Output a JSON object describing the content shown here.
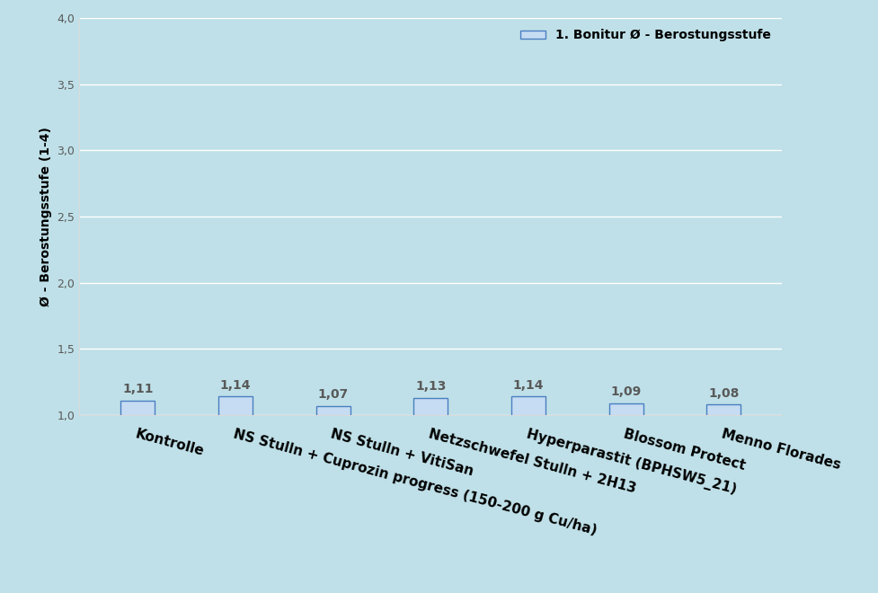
{
  "chart_data": {
    "type": "bar",
    "y_label": "Ø - Berostungsstufe (1-4)",
    "categories": [
      "Kontrolle",
      "NS Stulln + Cuprozin progress (150-200 g Cu/ha)",
      "NS Stulln + VitiSan",
      "Netzschwefel Stulln + 2H13",
      "Hyperparastit (BPHSW5_21)",
      "Blossom Protect",
      "Menno Florades"
    ],
    "series": [
      {
        "name": "1. Bonitur Ø - Berostungsstufe",
        "color": "#c6dcf2",
        "values": [
          1.11,
          1.14,
          1.07,
          1.13,
          1.14,
          1.09,
          1.08
        ],
        "value_labels": [
          "1,11",
          "1,14",
          "1,07",
          "1,13",
          "1,14",
          "1,09",
          "1,08"
        ]
      }
    ],
    "ylim": [
      1.0,
      4.0
    ],
    "yticks": [
      {
        "value": 1.0,
        "label": "1,0"
      },
      {
        "value": 1.5,
        "label": "1,5"
      },
      {
        "value": 2.0,
        "label": "2,0"
      },
      {
        "value": 2.5,
        "label": "2,5"
      },
      {
        "value": 3.0,
        "label": "3,0"
      },
      {
        "value": 3.5,
        "label": "3,5"
      },
      {
        "value": 4.0,
        "label": "4,0"
      }
    ],
    "grid": true,
    "legend": "upper right",
    "data_labels": true
  }
}
